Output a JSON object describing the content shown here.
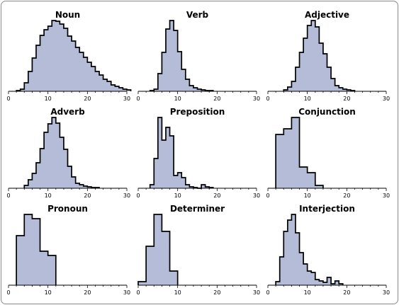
{
  "style": {
    "fill": "#b4bcd8",
    "stroke": "#000000",
    "axis": "#000000"
  },
  "chart_data": [
    {
      "type": "bar",
      "title": "Noun",
      "xlim": [
        0,
        30
      ],
      "xticks": [
        0,
        10,
        20,
        30
      ],
      "x_start": 2,
      "values": [
        0.01,
        0.03,
        0.12,
        0.28,
        0.47,
        0.65,
        0.79,
        0.87,
        0.92,
        1.0,
        0.99,
        0.95,
        0.89,
        0.78,
        0.71,
        0.62,
        0.55,
        0.48,
        0.41,
        0.35,
        0.28,
        0.23,
        0.17,
        0.14,
        0.09,
        0.07,
        0.05,
        0.03,
        0.02
      ]
    },
    {
      "type": "bar",
      "title": "Verb",
      "xlim": [
        0,
        30
      ],
      "xticks": [
        0,
        10,
        20,
        30
      ],
      "x_start": 3,
      "values": [
        0.01,
        0.03,
        0.25,
        0.55,
        0.88,
        1.0,
        0.86,
        0.56,
        0.31,
        0.17,
        0.08,
        0.05,
        0.03,
        0.02,
        0.01,
        0.01
      ]
    },
    {
      "type": "bar",
      "title": "Adjective",
      "xlim": [
        0,
        30
      ],
      "xticks": [
        0,
        10,
        20,
        30
      ],
      "x_start": 4,
      "values": [
        0.02,
        0.06,
        0.14,
        0.34,
        0.55,
        0.75,
        0.93,
        1.0,
        0.91,
        0.68,
        0.53,
        0.34,
        0.18,
        0.08,
        0.05,
        0.03,
        0.02,
        0.01
      ]
    },
    {
      "type": "bar",
      "title": "Adverb",
      "xlim": [
        0,
        30
      ],
      "xticks": [
        0,
        10,
        20,
        30
      ],
      "x_start": 4,
      "values": [
        0.04,
        0.12,
        0.21,
        0.36,
        0.56,
        0.79,
        0.91,
        1.0,
        0.92,
        0.72,
        0.55,
        0.31,
        0.16,
        0.07,
        0.05,
        0.03,
        0.02,
        0.01,
        0.01
      ]
    },
    {
      "type": "bar",
      "title": "Preposition",
      "xlim": [
        0,
        30
      ],
      "xticks": [
        0,
        10,
        20,
        30
      ],
      "x_start": 3,
      "values": [
        0.05,
        0.42,
        1.0,
        0.68,
        0.86,
        0.74,
        0.18,
        0.22,
        0.15,
        0.05,
        0.02,
        0.01,
        0.0,
        0.05,
        0.02,
        0.01
      ]
    },
    {
      "type": "bar",
      "title": "Conjunction",
      "xlim": [
        0,
        30
      ],
      "xticks": [
        0,
        10,
        20,
        30
      ],
      "x_start": 2,
      "values": [
        0.76,
        0.76,
        0.84,
        0.84,
        1.0,
        1.0,
        0.3,
        0.3,
        0.22,
        0.22,
        0.04,
        0.04
      ]
    },
    {
      "type": "bar",
      "title": "Pronoun",
      "xlim": [
        0,
        30
      ],
      "xticks": [
        0,
        10,
        20,
        30
      ],
      "x_start": 2,
      "values": [
        0.7,
        0.7,
        1.0,
        1.0,
        0.94,
        0.94,
        0.48,
        0.48,
        0.42,
        0.42
      ]
    },
    {
      "type": "bar",
      "title": "Determiner",
      "xlim": [
        0,
        30
      ],
      "xticks": [
        0,
        10,
        20,
        30
      ],
      "x_start": 0,
      "values": [
        0.05,
        0.05,
        0.55,
        0.55,
        1.0,
        1.0,
        0.76,
        0.76,
        0.2,
        0.2
      ]
    },
    {
      "type": "bar",
      "title": "Interjection",
      "xlim": [
        0,
        30
      ],
      "xticks": [
        0,
        10,
        20,
        30
      ],
      "x_start": 2,
      "values": [
        0.05,
        0.4,
        0.76,
        0.92,
        1.0,
        0.74,
        0.46,
        0.3,
        0.2,
        0.18,
        0.08,
        0.06,
        0.04,
        0.11,
        0.02,
        0.06,
        0.02
      ]
    }
  ]
}
